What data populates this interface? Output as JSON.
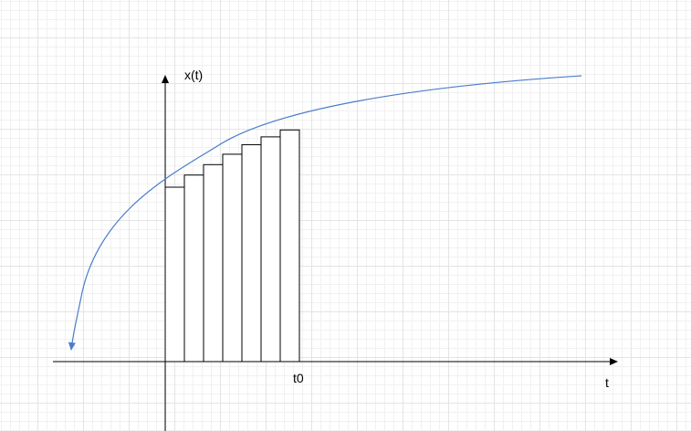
{
  "diagram": {
    "y_axis_label": "x(t)",
    "x_axis_label": "t",
    "t0_label": "t0",
    "bars": [
      {
        "value": 0.0
      },
      {
        "value": 0.07
      },
      {
        "value": 0.13
      },
      {
        "value": 0.19
      },
      {
        "value": 0.245
      },
      {
        "value": 0.29
      },
      {
        "value": 0.33
      }
    ],
    "colors": {
      "axis": "#000000",
      "curve": "#4a7cc9",
      "bar_fill": "#ffffff",
      "bar_stroke": "#000000",
      "grid_major": "#e4e4e4",
      "grid_minor": "#f1f1f1"
    }
  }
}
